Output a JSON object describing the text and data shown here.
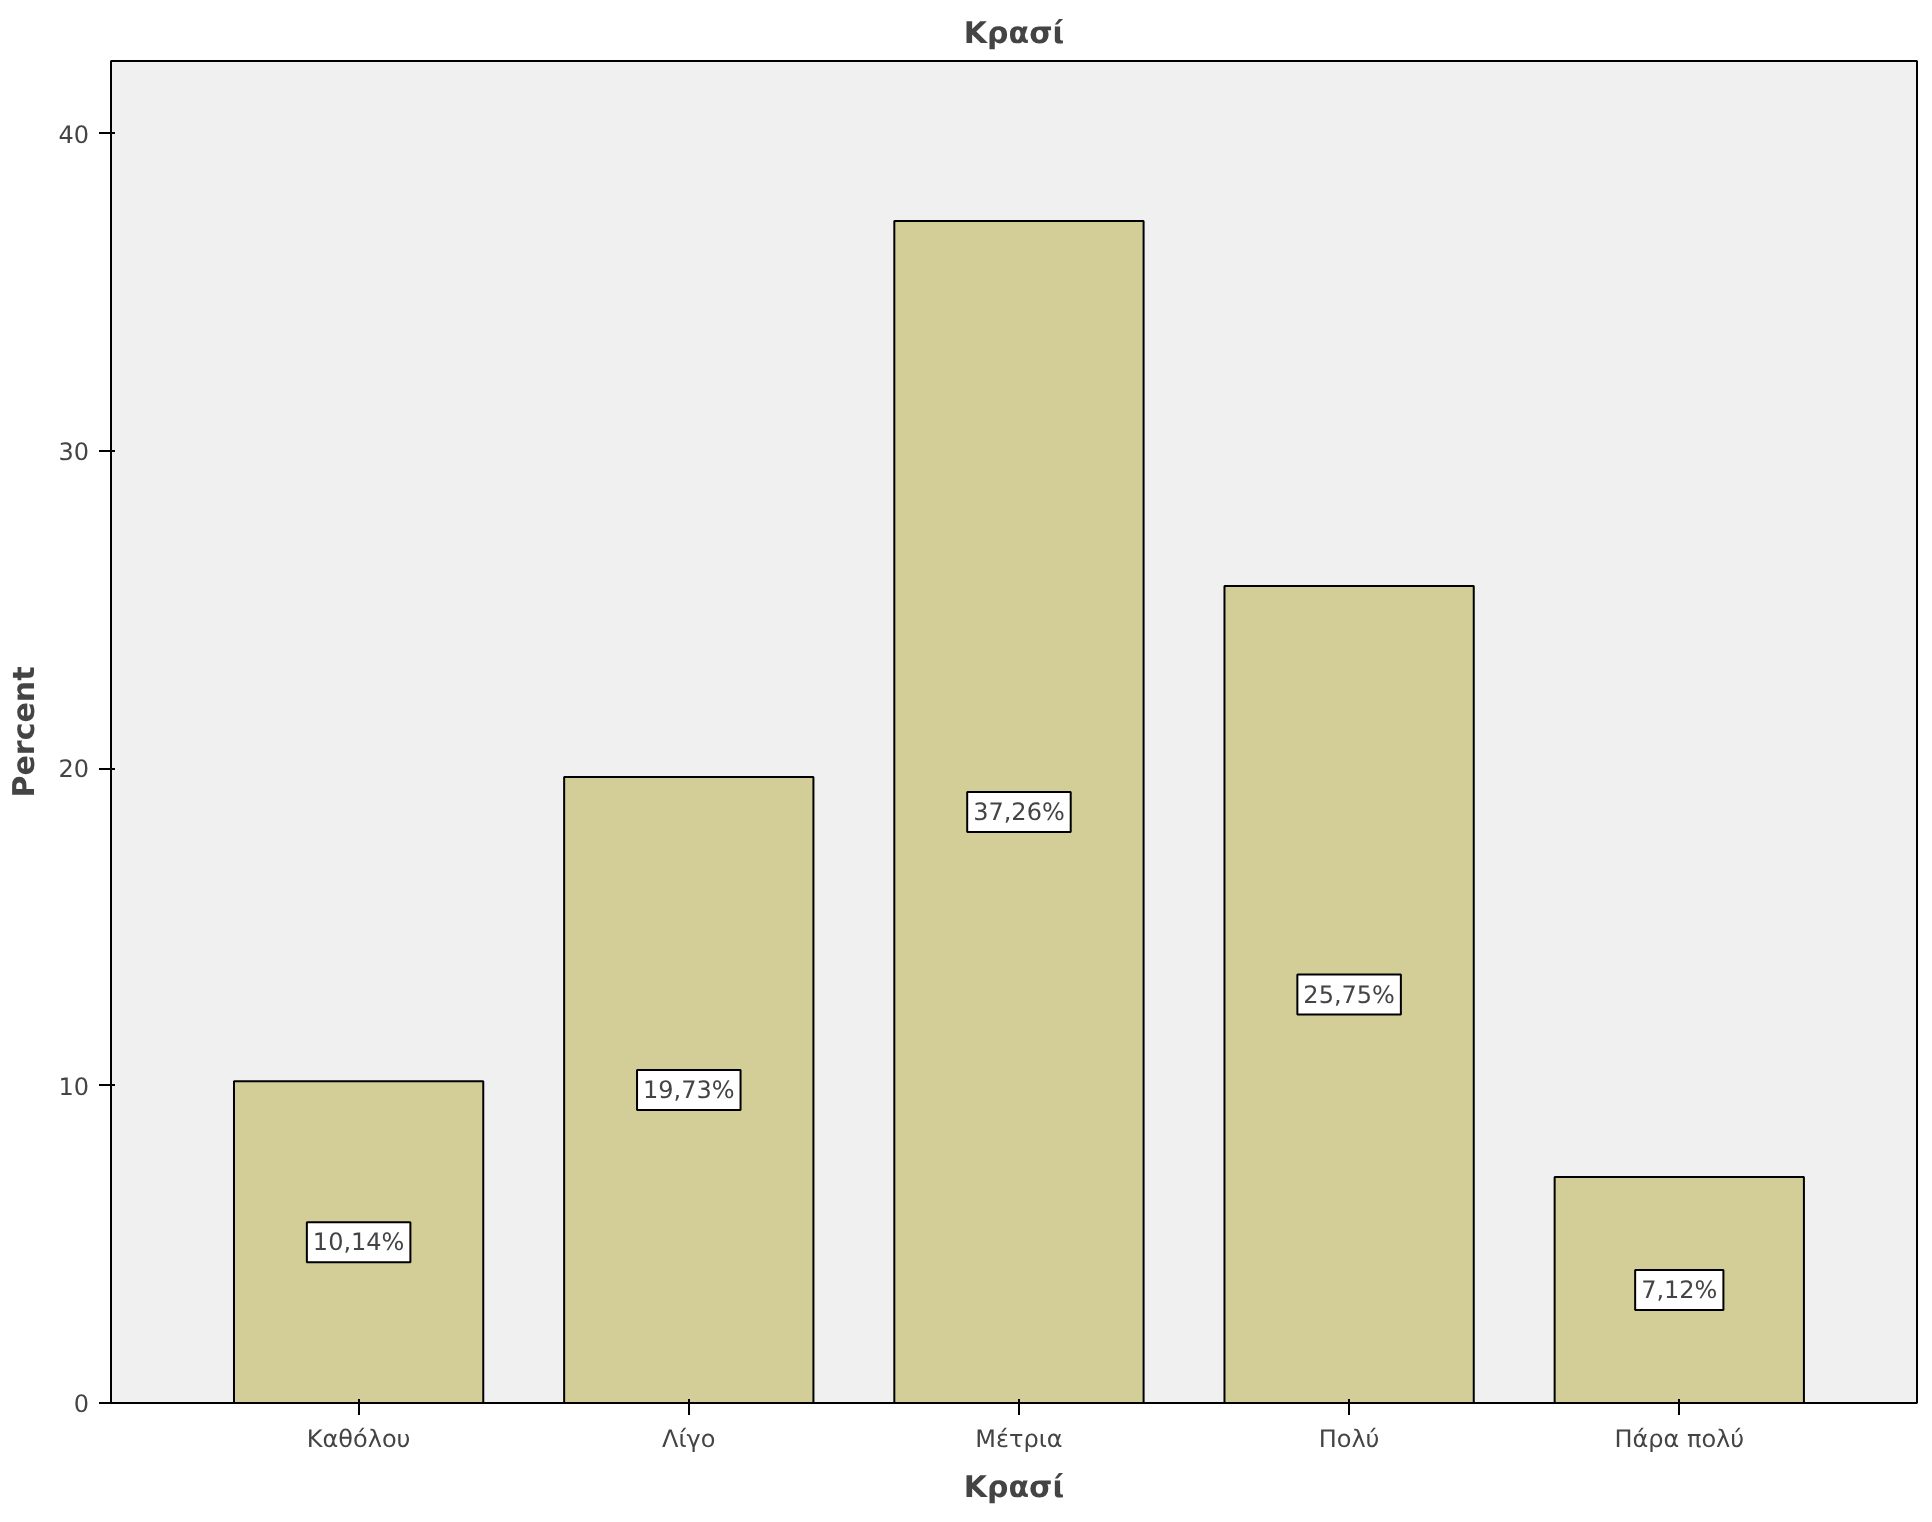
{
  "chart_data": {
    "type": "bar",
    "title": "Κρασί",
    "xlabel": "Κρασί",
    "ylabel": "Percent",
    "categories": [
      "Καθόλου",
      "Λίγο",
      "Μέτρια",
      "Πολύ",
      "Πάρα πολύ"
    ],
    "values": [
      10.14,
      19.73,
      37.26,
      25.75,
      7.12
    ],
    "value_labels": [
      "10,14%",
      "19,73%",
      "37,26%",
      "25,75%",
      "7,12%"
    ],
    "color": "#d3ce97",
    "ylim": [
      0,
      42.3
    ],
    "yticks": [
      0,
      10,
      20,
      30,
      40
    ],
    "grid": false
  }
}
